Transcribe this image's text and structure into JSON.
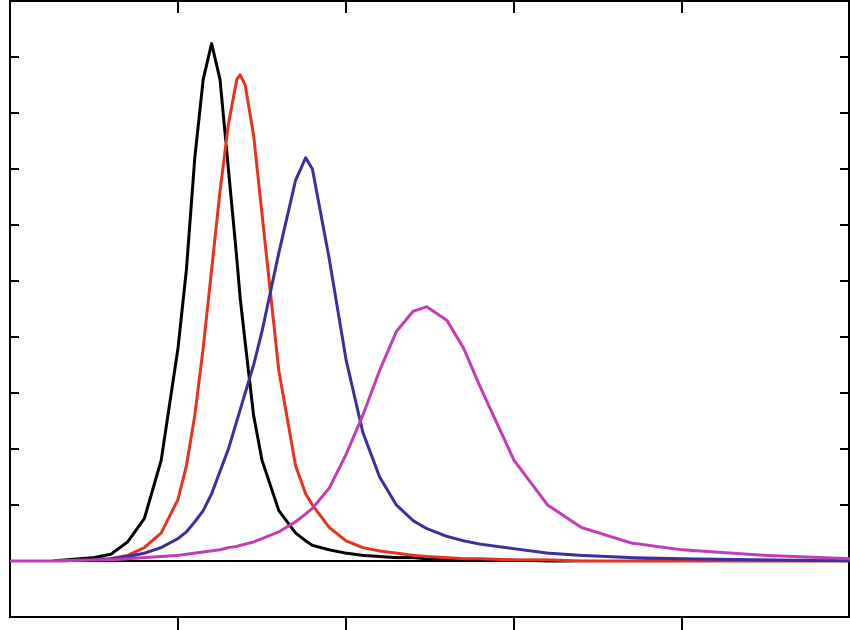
{
  "chart_data": {
    "type": "line",
    "x": [
      0,
      0.25,
      0.5,
      0.6,
      0.7,
      0.8,
      0.9,
      1.0,
      1.05,
      1.1,
      1.15,
      1.2,
      1.25,
      1.3,
      1.35,
      1.37,
      1.4,
      1.45,
      1.5,
      1.6,
      1.7,
      1.76,
      1.8,
      1.9,
      2.0,
      2.1,
      2.2,
      2.3,
      2.4,
      2.48,
      2.6,
      2.7,
      2.8,
      3.0,
      3.2,
      3.4,
      3.7,
      4.0,
      4.5,
      5.0
    ],
    "series": [
      {
        "color": "#000000",
        "values": [
          0,
          0,
          0.03,
          0.06,
          0.17,
          0.38,
          0.9,
          1.9,
          2.6,
          3.6,
          4.3,
          4.62,
          4.3,
          3.5,
          2.7,
          2.35,
          1.95,
          1.3,
          0.9,
          0.45,
          0.25,
          0.18,
          0.14,
          0.1,
          0.07,
          0.05,
          0.04,
          0.03,
          0.03,
          0.02,
          0.02,
          0.01,
          0.01,
          0.01,
          0,
          0,
          0,
          0,
          0,
          0
        ]
      },
      {
        "color": "#e8321e",
        "values": [
          0,
          0,
          0.01,
          0.02,
          0.05,
          0.12,
          0.25,
          0.55,
          0.85,
          1.3,
          1.9,
          2.6,
          3.3,
          3.9,
          4.3,
          4.34,
          4.25,
          3.8,
          3.1,
          1.7,
          0.85,
          0.6,
          0.5,
          0.3,
          0.18,
          0.12,
          0.09,
          0.07,
          0.05,
          0.04,
          0.03,
          0.02,
          0.02,
          0.01,
          0.01,
          0,
          0,
          0,
          0,
          0
        ]
      },
      {
        "color": "#3a2f9c",
        "values": [
          0,
          0,
          0.01,
          0.02,
          0.04,
          0.07,
          0.12,
          0.2,
          0.26,
          0.35,
          0.45,
          0.6,
          0.8,
          1.0,
          1.25,
          1.35,
          1.5,
          1.75,
          2.05,
          2.75,
          3.4,
          3.6,
          3.5,
          2.7,
          1.8,
          1.15,
          0.75,
          0.5,
          0.36,
          0.29,
          0.22,
          0.18,
          0.15,
          0.11,
          0.07,
          0.05,
          0.03,
          0.02,
          0.01,
          0
        ]
      },
      {
        "color": "#c23cb4",
        "values": [
          0,
          0,
          0.01,
          0.01,
          0.02,
          0.03,
          0.04,
          0.05,
          0.06,
          0.07,
          0.08,
          0.09,
          0.1,
          0.12,
          0.13,
          0.14,
          0.15,
          0.17,
          0.2,
          0.26,
          0.35,
          0.42,
          0.47,
          0.65,
          0.95,
          1.3,
          1.7,
          2.05,
          2.23,
          2.27,
          2.15,
          1.9,
          1.55,
          0.9,
          0.5,
          0.3,
          0.16,
          0.1,
          0.05,
          0.02
        ]
      }
    ],
    "xlim": [
      0,
      5
    ],
    "xticks": [
      1,
      2,
      3,
      4
    ],
    "ylim": [
      -0.5,
      5
    ],
    "yticks": [
      0,
      0.5,
      1,
      1.5,
      2,
      2.5,
      3,
      3.5,
      4,
      4.5
    ],
    "tick_labels": false,
    "zero_line": true,
    "grid": false
  }
}
